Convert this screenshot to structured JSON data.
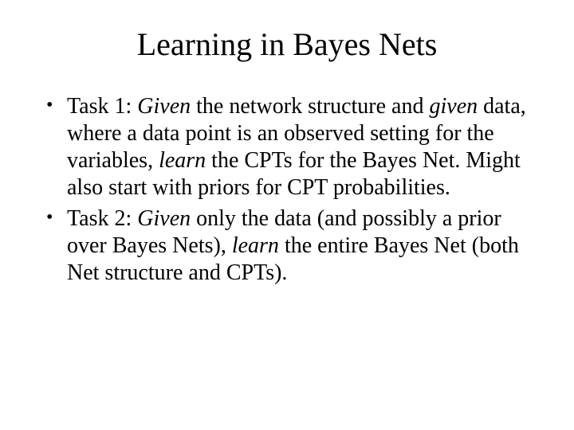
{
  "slide": {
    "title": "Learning in Bayes Nets",
    "title_fontsize": 40,
    "body_fontsize": 28,
    "background_color": "#ffffff",
    "text_color": "#000000",
    "font_family": "Times New Roman",
    "bullets": [
      {
        "runs": [
          {
            "text": "Task 1: ",
            "italic": false
          },
          {
            "text": "Given",
            "italic": true
          },
          {
            "text": " the network structure and ",
            "italic": false
          },
          {
            "text": "given",
            "italic": true
          },
          {
            "text": " data, where a data point is an observed setting for the variables, ",
            "italic": false
          },
          {
            "text": "learn",
            "italic": true
          },
          {
            "text": " the CPTs for the Bayes Net.  Might also start with priors for CPT probabilities.",
            "italic": false
          }
        ]
      },
      {
        "runs": [
          {
            "text": "Task 2: ",
            "italic": false
          },
          {
            "text": "Given",
            "italic": true
          },
          {
            "text": " only the data (and possibly a prior over Bayes Nets), ",
            "italic": false
          },
          {
            "text": "learn",
            "italic": true
          },
          {
            "text": " the entire Bayes Net (both Net structure and CPTs).",
            "italic": false
          }
        ]
      }
    ]
  }
}
